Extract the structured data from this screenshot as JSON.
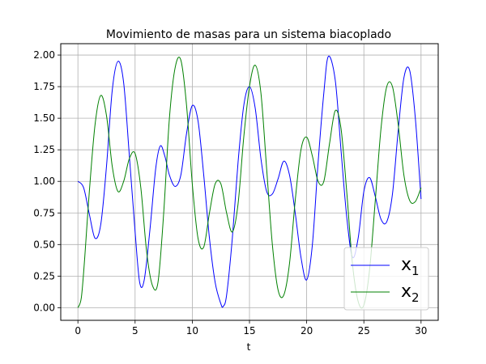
{
  "chart_data": {
    "type": "line",
    "title": "Movimiento de masas para un sistema biacoplado",
    "xlabel": "t",
    "ylabel": "",
    "xlim": [
      -1.5,
      31.5
    ],
    "ylim": [
      -0.1,
      2.09
    ],
    "grid": true,
    "legend_position": "bottom-right",
    "x_ticks": [
      0,
      5,
      10,
      15,
      20,
      25,
      30
    ],
    "x_tick_labels": [
      "0",
      "5",
      "10",
      "15",
      "20",
      "25",
      "30"
    ],
    "y_ticks": [
      0,
      0.25,
      0.5,
      0.75,
      1.0,
      1.25,
      1.5,
      1.75,
      2.0
    ],
    "y_tick_labels": [
      "0.00",
      "0.25",
      "0.50",
      "0.75",
      "1.00",
      "1.25",
      "1.50",
      "1.75",
      "2.00"
    ],
    "series": [
      {
        "name": "x1",
        "legend_main": "x",
        "legend_sub": "1",
        "color": "#0000ff",
        "x": [
          0,
          0.5,
          1.0,
          1.5,
          2.0,
          2.5,
          3.0,
          3.5,
          4.0,
          4.5,
          5.0,
          5.4,
          5.8,
          6.3,
          6.8,
          7.2,
          7.6,
          8.0,
          8.5,
          9.0,
          9.5,
          10.0,
          10.5,
          11.0,
          11.5,
          12.0,
          12.5,
          12.7,
          13.0,
          13.5,
          14.0,
          14.5,
          15.0,
          15.5,
          16.0,
          16.5,
          17.0,
          17.5,
          18.0,
          18.5,
          19.0,
          19.5,
          20.0,
          20.5,
          21.0,
          21.5,
          21.9,
          22.5,
          23.0,
          23.5,
          24.0,
          24.5,
          25.0,
          25.5,
          26.0,
          26.5,
          27.0,
          27.5,
          28.0,
          28.5,
          29.0,
          29.5,
          30.0
        ],
        "y": [
          1.0,
          0.95,
          0.74,
          0.55,
          0.66,
          1.12,
          1.72,
          1.95,
          1.78,
          1.2,
          0.6,
          0.2,
          0.22,
          0.62,
          1.1,
          1.28,
          1.2,
          1.05,
          0.96,
          1.05,
          1.38,
          1.6,
          1.48,
          1.05,
          0.55,
          0.2,
          0.03,
          0.01,
          0.1,
          0.55,
          1.15,
          1.6,
          1.75,
          1.58,
          1.18,
          0.92,
          0.9,
          1.02,
          1.16,
          1.05,
          0.75,
          0.4,
          0.22,
          0.5,
          1.15,
          1.7,
          1.99,
          1.8,
          1.25,
          0.72,
          0.4,
          0.55,
          0.92,
          1.03,
          0.88,
          0.7,
          0.68,
          0.9,
          1.4,
          1.82,
          1.88,
          1.5,
          0.86
        ]
      },
      {
        "name": "x2",
        "legend_main": "x",
        "legend_sub": "2",
        "color": "#008000",
        "x": [
          0,
          0.3,
          0.6,
          1.0,
          1.5,
          2.0,
          2.5,
          3.0,
          3.5,
          4.0,
          4.5,
          5.0,
          5.5,
          6.0,
          6.5,
          7.0,
          7.5,
          8.0,
          8.5,
          9.0,
          9.5,
          10.0,
          10.5,
          11.0,
          11.5,
          12.0,
          12.5,
          13.0,
          13.5,
          14.0,
          14.5,
          15.0,
          15.5,
          16.0,
          16.5,
          17.0,
          17.5,
          18.0,
          18.5,
          19.0,
          19.5,
          20.0,
          20.5,
          21.0,
          21.5,
          22.0,
          22.5,
          23.0,
          23.5,
          24.0,
          24.5,
          25.0,
          25.5,
          26.0,
          26.5,
          27.0,
          27.5,
          28.0,
          28.5,
          29.0,
          29.5,
          30.0
        ],
        "y": [
          0.0,
          0.08,
          0.4,
          0.92,
          1.45,
          1.68,
          1.52,
          1.12,
          0.92,
          1.0,
          1.18,
          1.22,
          0.95,
          0.45,
          0.18,
          0.2,
          0.75,
          1.5,
          1.9,
          1.96,
          1.6,
          0.98,
          0.55,
          0.48,
          0.75,
          0.98,
          0.98,
          0.75,
          0.6,
          0.82,
          1.35,
          1.75,
          1.92,
          1.7,
          1.1,
          0.5,
          0.14,
          0.1,
          0.35,
          0.85,
          1.25,
          1.35,
          1.2,
          1.0,
          1.0,
          1.3,
          1.56,
          1.42,
          0.92,
          0.35,
          0.05,
          0.02,
          0.3,
          0.85,
          1.42,
          1.75,
          1.75,
          1.45,
          1.05,
          0.85,
          0.84,
          0.95
        ]
      }
    ]
  }
}
